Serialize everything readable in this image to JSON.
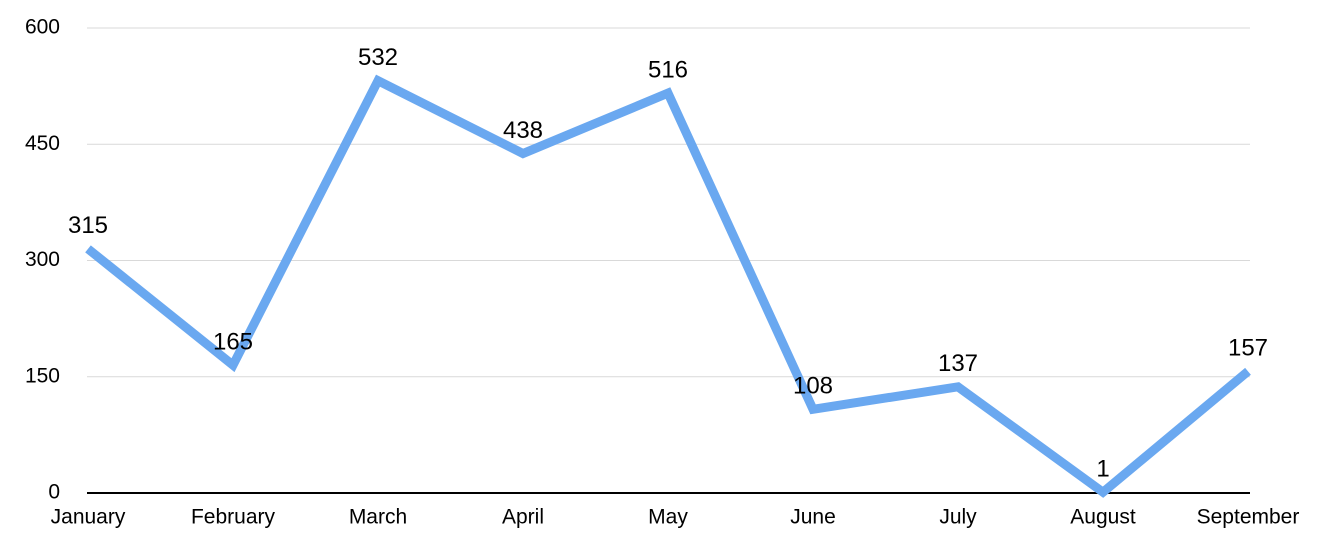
{
  "chart_data": {
    "type": "line",
    "categories": [
      "January",
      "February",
      "March",
      "April",
      "May",
      "June",
      "July",
      "August",
      "September"
    ],
    "series": [
      {
        "color": "#6aa8f0",
        "values": [
          315,
          165,
          532,
          438,
          516,
          108,
          137,
          1,
          157
        ]
      }
    ],
    "ylim": [
      0,
      600
    ],
    "yticks": [
      0,
      150,
      300,
      450,
      600
    ],
    "grid": true
  }
}
